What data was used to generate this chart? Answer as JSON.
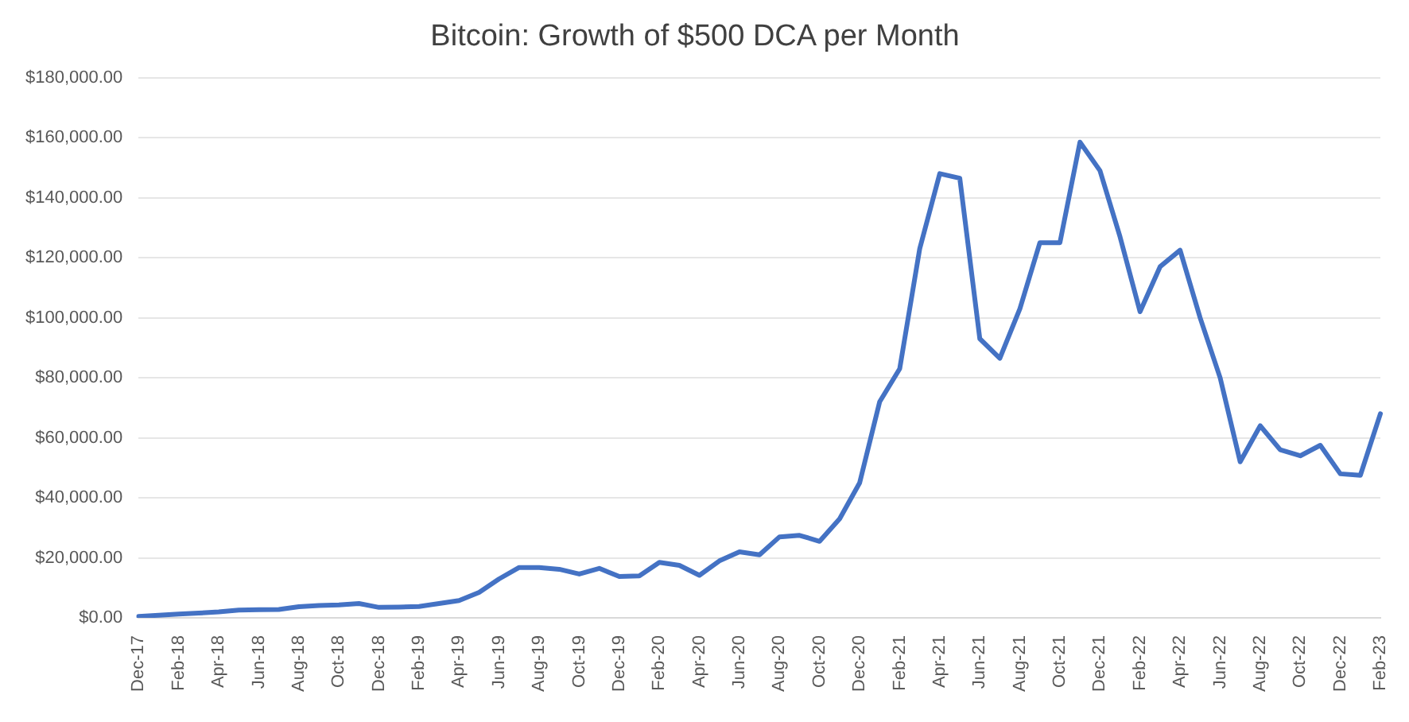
{
  "chart_data": {
    "type": "line",
    "title": "Bitcoin: Growth of $500 DCA per Month",
    "categories": [
      "Dec-17",
      null,
      "Feb-18",
      null,
      "Apr-18",
      null,
      "Jun-18",
      null,
      "Aug-18",
      null,
      "Oct-18",
      null,
      "Dec-18",
      null,
      "Feb-19",
      null,
      "Apr-19",
      null,
      "Jun-19",
      null,
      "Aug-19",
      null,
      "Oct-19",
      null,
      "Dec-19",
      null,
      "Feb-20",
      null,
      "Apr-20",
      null,
      "Jun-20",
      null,
      "Aug-20",
      null,
      "Oct-20",
      null,
      "Dec-20",
      null,
      "Feb-21",
      null,
      "Apr-21",
      null,
      "Jun-21",
      null,
      "Aug-21",
      null,
      "Oct-21",
      null,
      "Dec-21",
      null,
      "Feb-22",
      null,
      "Apr-22",
      null,
      "Jun-22",
      null,
      "Aug-22",
      null,
      "Oct-22",
      null,
      "Dec-22",
      null,
      "Feb-23"
    ],
    "series": [
      {
        "color": "#4472c4",
        "values": [
          500,
          900,
          1300,
          1600,
          2000,
          2600,
          2700,
          2800,
          3700,
          4100,
          4300,
          4800,
          3500,
          3600,
          3800,
          4800,
          5800,
          8500,
          13000,
          16800,
          16800,
          16200,
          14600,
          16500,
          13800,
          14000,
          18500,
          17500,
          14200,
          19000,
          22000,
          21000,
          27000,
          27500,
          25500,
          33000,
          45000,
          72000,
          83000,
          123000,
          148000,
          146500,
          93000,
          86500,
          103000,
          125000,
          125000,
          158500,
          149000,
          127000,
          102000,
          117000,
          122500,
          100000,
          80000,
          52000,
          64000,
          56000,
          54000,
          57500,
          48000,
          47500,
          68000
        ]
      }
    ],
    "ylim": [
      0,
      180000
    ],
    "yticks": [
      {
        "value": 0,
        "label": "$0.00"
      },
      {
        "value": 20000,
        "label": "$20,000.00"
      },
      {
        "value": 40000,
        "label": "$40,000.00"
      },
      {
        "value": 60000,
        "label": "$60,000.00"
      },
      {
        "value": 80000,
        "label": "$80,000.00"
      },
      {
        "value": 100000,
        "label": "$100,000.00"
      },
      {
        "value": 120000,
        "label": "$120,000.00"
      },
      {
        "value": 140000,
        "label": "$140,000.00"
      },
      {
        "value": 160000,
        "label": "$160,000.00"
      },
      {
        "value": 180000,
        "label": "$180,000.00"
      }
    ],
    "grid": "y",
    "legend": false,
    "marker": "none",
    "line_style": "solid"
  }
}
